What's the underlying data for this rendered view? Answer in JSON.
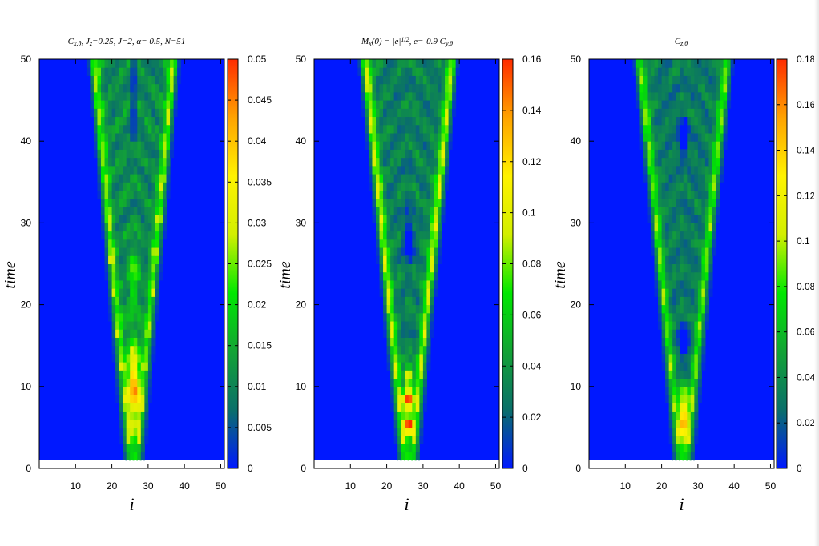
{
  "chart_data": [
    {
      "type": "heatmap",
      "title": "C_{x,θ}, J_z=0.25,  J=2, α= 0.5, N=51",
      "xlabel": "i",
      "ylabel": "time",
      "xlim": [
        0,
        51
      ],
      "ylim": [
        0,
        50
      ],
      "xticks": [
        "10",
        "20",
        "30",
        "40",
        "50"
      ],
      "yticks": [
        "0",
        "10",
        "20",
        "30",
        "40",
        "50"
      ],
      "colorbar": {
        "min": 0,
        "max": 0.05,
        "ticks": [
          "0",
          "0.005",
          "0.01",
          "0.015",
          "0.02",
          "0.025",
          "0.03",
          "0.035",
          "0.04",
          "0.045",
          "0.05"
        ]
      },
      "center_site": 26,
      "light_cone_half_width_at_t50": 11,
      "hotspots": [
        {
          "i": 26,
          "time": 10,
          "value": 0.05
        },
        {
          "i": 26,
          "time": 12,
          "value": 0.04
        }
      ]
    },
    {
      "type": "heatmap",
      "title": "M_x(0) = |e|^{1/2}, e=-0.9  C_{y,θ}",
      "xlabel": "i",
      "ylabel": "time",
      "xlim": [
        0,
        51
      ],
      "ylim": [
        0,
        50
      ],
      "xticks": [
        "10",
        "20",
        "30",
        "40",
        "50"
      ],
      "yticks": [
        "0",
        "10",
        "20",
        "30",
        "40",
        "50"
      ],
      "colorbar": {
        "min": 0,
        "max": 0.16,
        "ticks": [
          "0",
          "0.02",
          "0.04",
          "0.06",
          "0.08",
          "0.1",
          "0.12",
          "0.14",
          "0.16"
        ]
      },
      "center_site": 26,
      "light_cone_half_width_at_t50": 12,
      "hotspots": [
        {
          "i": 26,
          "time": 8,
          "value": 0.16
        },
        {
          "i": 26,
          "time": 5,
          "value": 0.15
        }
      ]
    },
    {
      "type": "heatmap",
      "title": "C_{z,θ}",
      "xlabel": "i",
      "ylabel": "time",
      "xlim": [
        0,
        51
      ],
      "ylim": [
        0,
        50
      ],
      "xticks": [
        "10",
        "20",
        "30",
        "40",
        "50"
      ],
      "yticks": [
        "0",
        "10",
        "20",
        "30",
        "40",
        "50"
      ],
      "colorbar": {
        "min": 0,
        "max": 0.18,
        "ticks": [
          "0",
          "0.02",
          "0.04",
          "0.06",
          "0.08",
          "0.1",
          "0.12",
          "0.14",
          "0.16",
          "0.18"
        ]
      },
      "center_site": 26,
      "light_cone_half_width_at_t50": 12,
      "hotspots": [
        {
          "i": 26,
          "time": 7,
          "value": 0.13
        },
        {
          "i": 26,
          "time": 15,
          "value": 0.0
        }
      ]
    }
  ],
  "colormap": [
    "#0018ff",
    "#0a6f6a",
    "#13a335",
    "#00e800",
    "#d2ef00",
    "#fff200",
    "#ffa300",
    "#ff2c00"
  ]
}
